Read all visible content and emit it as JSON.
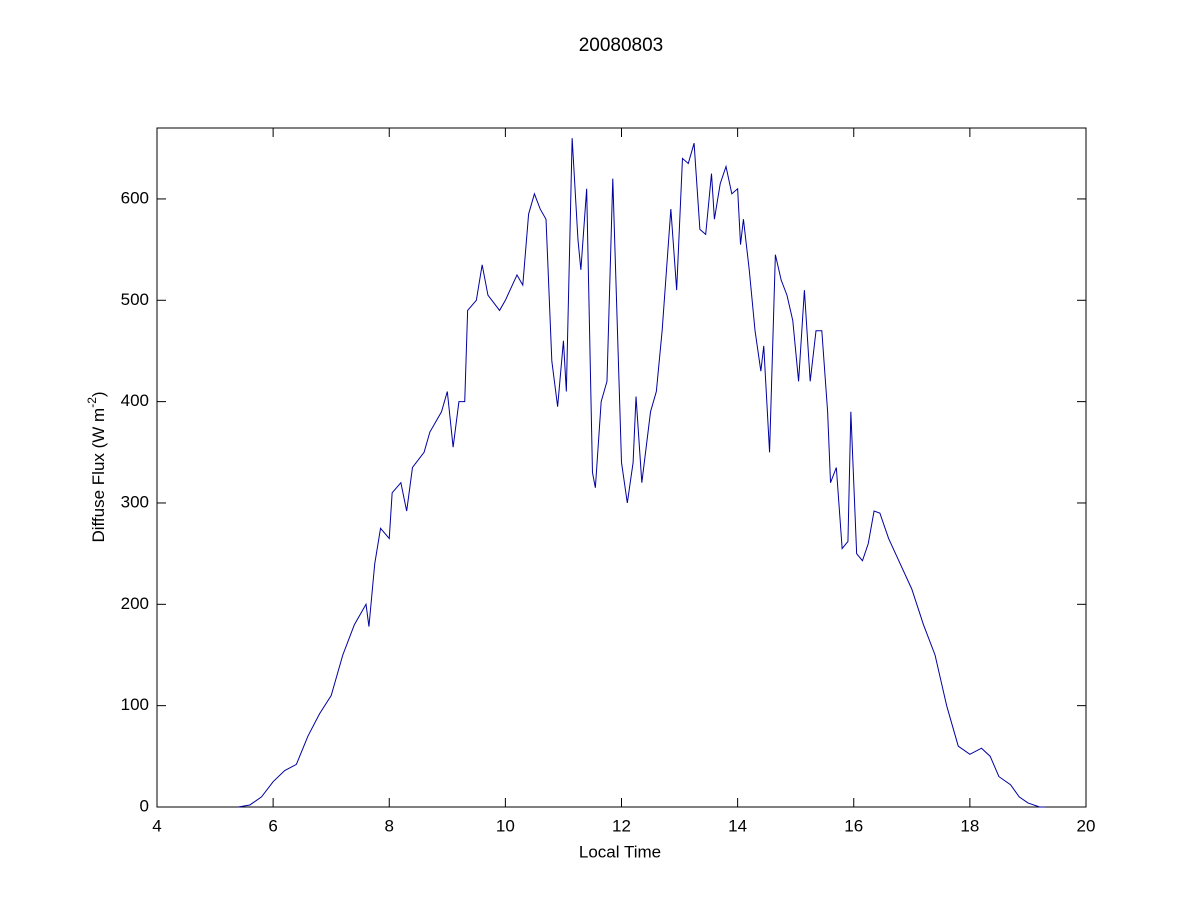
{
  "chart_data": {
    "type": "line",
    "title": "20080803",
    "xlabel": "Local Time",
    "ylabel": {
      "text": "Diffuse Flux (W m",
      "sup": "-2",
      "end": ")"
    },
    "xlim": [
      4,
      20
    ],
    "xticks": [
      4,
      6,
      8,
      10,
      12,
      14,
      16,
      18,
      20
    ],
    "ylim": [
      0,
      670
    ],
    "yticks": [
      0,
      100,
      200,
      300,
      400,
      500,
      600
    ],
    "grid": false,
    "x": [
      5.4,
      5.6,
      5.8,
      6.0,
      6.2,
      6.4,
      6.6,
      6.8,
      7.0,
      7.2,
      7.4,
      7.6,
      7.65,
      7.75,
      7.85,
      8.0,
      8.05,
      8.2,
      8.3,
      8.4,
      8.6,
      8.7,
      8.9,
      9.0,
      9.1,
      9.2,
      9.3,
      9.35,
      9.5,
      9.6,
      9.7,
      9.9,
      10.0,
      10.2,
      10.3,
      10.4,
      10.5,
      10.6,
      10.7,
      10.8,
      10.9,
      11.0,
      11.05,
      11.15,
      11.25,
      11.3,
      11.4,
      11.5,
      11.55,
      11.65,
      11.75,
      11.85,
      12.0,
      12.1,
      12.2,
      12.25,
      12.35,
      12.5,
      12.6,
      12.7,
      12.85,
      12.95,
      13.05,
      13.15,
      13.25,
      13.35,
      13.45,
      13.55,
      13.6,
      13.7,
      13.8,
      13.9,
      14.0,
      14.05,
      14.1,
      14.2,
      14.3,
      14.4,
      14.45,
      14.55,
      14.65,
      14.75,
      14.85,
      14.95,
      15.05,
      15.15,
      15.25,
      15.35,
      15.45,
      15.55,
      15.6,
      15.7,
      15.8,
      15.9,
      15.95,
      16.05,
      16.15,
      16.25,
      16.35,
      16.45,
      16.6,
      16.8,
      17.0,
      17.2,
      17.4,
      17.5,
      17.6,
      17.7,
      17.8,
      18.0,
      18.2,
      18.35,
      18.5,
      18.7,
      18.85,
      19.0,
      19.2,
      19.3
    ],
    "series": [
      {
        "name": "Diffuse Flux",
        "color": "#0000a0",
        "values": [
          0,
          2,
          10,
          25,
          36,
          42,
          70,
          92,
          110,
          150,
          180,
          200,
          178,
          240,
          275,
          265,
          310,
          320,
          292,
          335,
          350,
          370,
          390,
          410,
          355,
          400,
          400,
          490,
          500,
          535,
          505,
          490,
          500,
          525,
          515,
          585,
          605,
          590,
          580,
          440,
          395,
          460,
          410,
          660,
          560,
          530,
          610,
          330,
          315,
          400,
          420,
          620,
          340,
          300,
          340,
          405,
          320,
          390,
          410,
          470,
          590,
          510,
          640,
          635,
          655,
          570,
          565,
          625,
          580,
          615,
          632,
          605,
          610,
          555,
          580,
          530,
          470,
          430,
          455,
          350,
          545,
          520,
          505,
          480,
          420,
          510,
          420,
          470,
          470,
          390,
          320,
          335,
          255,
          262,
          390,
          250,
          243,
          260,
          292,
          290,
          265,
          240,
          215,
          180,
          150,
          125,
          100,
          80,
          60,
          52,
          58,
          50,
          30,
          22,
          10,
          4,
          0,
          0
        ]
      }
    ]
  }
}
